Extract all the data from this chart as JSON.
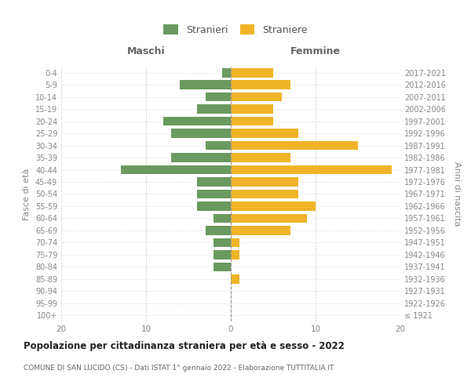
{
  "age_groups": [
    "100+",
    "95-99",
    "90-94",
    "85-89",
    "80-84",
    "75-79",
    "70-74",
    "65-69",
    "60-64",
    "55-59",
    "50-54",
    "45-49",
    "40-44",
    "35-39",
    "30-34",
    "25-29",
    "20-24",
    "15-19",
    "10-14",
    "5-9",
    "0-4"
  ],
  "birth_years": [
    "≤ 1921",
    "1922-1926",
    "1927-1931",
    "1932-1936",
    "1937-1941",
    "1942-1946",
    "1947-1951",
    "1952-1956",
    "1957-1961",
    "1962-1966",
    "1967-1971",
    "1972-1976",
    "1977-1981",
    "1982-1986",
    "1987-1991",
    "1992-1996",
    "1997-2001",
    "2002-2006",
    "2007-2011",
    "2012-2016",
    "2017-2021"
  ],
  "maschi": [
    0,
    0,
    0,
    0,
    2,
    2,
    2,
    3,
    2,
    4,
    4,
    4,
    13,
    7,
    3,
    7,
    8,
    4,
    3,
    6,
    1
  ],
  "femmine": [
    0,
    0,
    0,
    1,
    0,
    1,
    1,
    7,
    9,
    10,
    8,
    8,
    19,
    7,
    15,
    8,
    5,
    5,
    6,
    7,
    5
  ],
  "color_maschi": "#6a9a5f",
  "color_femmine": "#f0b429",
  "title": "Popolazione per cittadinanza straniera per età e sesso - 2022",
  "subtitle": "COMUNE DI SAN LUCIDO (CS) - Dati ISTAT 1° gennaio 2022 - Elaborazione TUTTITALIA.IT",
  "xlabel_left": "Maschi",
  "xlabel_right": "Femmine",
  "ylabel_left": "Fasce di età",
  "ylabel_right": "Anni di nascita",
  "legend_maschi": "Stranieri",
  "legend_femmine": "Straniere",
  "xlim": 20,
  "background_color": "#ffffff",
  "grid_color": "#cccccc"
}
